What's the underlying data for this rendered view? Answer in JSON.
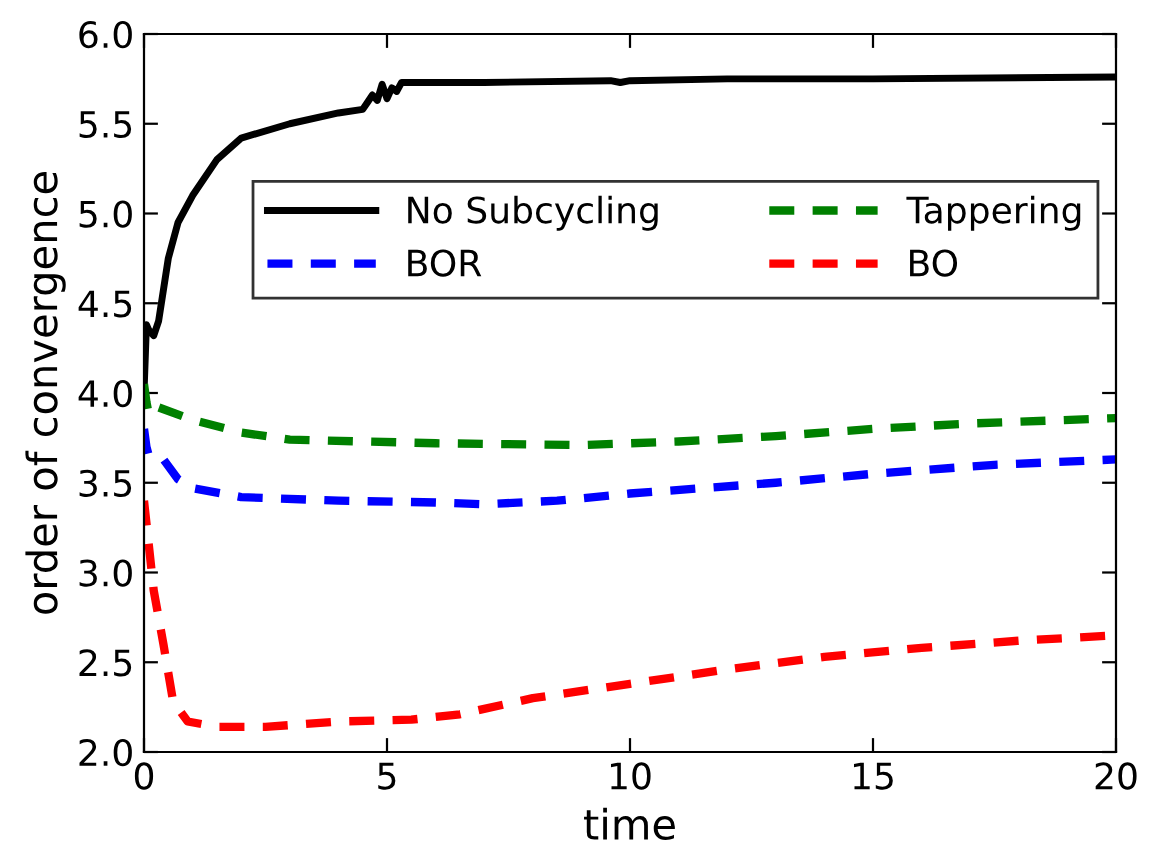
{
  "chart_data": {
    "type": "line",
    "xlabel": "time",
    "ylabel": "order of convergence",
    "xlim": [
      0,
      20
    ],
    "ylim": [
      2.0,
      6.0
    ],
    "xticks": [
      0,
      5,
      10,
      15,
      20
    ],
    "yticks": [
      {
        "value": 2.0,
        "label": "2.0"
      },
      {
        "value": 2.5,
        "label": "2.5"
      },
      {
        "value": 3.0,
        "label": "3.0"
      },
      {
        "value": 3.5,
        "label": "3.5"
      },
      {
        "value": 4.0,
        "label": "4.0"
      },
      {
        "value": 4.5,
        "label": "4.5"
      },
      {
        "value": 5.0,
        "label": "5.0"
      },
      {
        "value": 5.5,
        "label": "5.5"
      },
      {
        "value": 6.0,
        "label": "6.0"
      }
    ],
    "grid": false,
    "legend": "top right",
    "marker": "none",
    "series": [
      {
        "name": "No Subcycling",
        "color": "#000000",
        "line_style": "solid",
        "x": [
          0,
          0.05,
          0.1,
          0.2,
          0.3,
          0.5,
          0.7,
          1,
          1.5,
          2,
          3,
          4,
          4.5,
          4.6,
          4.7,
          4.8,
          4.9,
          5.0,
          5.1,
          5.2,
          5.3,
          7,
          9.6,
          9.8,
          10,
          12,
          15,
          20
        ],
        "values": [
          4.0,
          4.38,
          4.35,
          4.32,
          4.4,
          4.75,
          4.95,
          5.1,
          5.3,
          5.42,
          5.5,
          5.56,
          5.58,
          5.62,
          5.66,
          5.63,
          5.72,
          5.64,
          5.7,
          5.68,
          5.73,
          5.73,
          5.74,
          5.73,
          5.74,
          5.75,
          5.75,
          5.76
        ]
      },
      {
        "name": "BOR",
        "color": "#0000ff",
        "line_style": "dashed",
        "x": [
          0,
          0.05,
          0.1,
          0.4,
          0.7,
          1,
          2,
          4,
          6,
          7,
          8.5,
          10,
          13,
          15,
          17.5,
          20
        ],
        "values": [
          3.8,
          3.7,
          3.65,
          3.63,
          3.52,
          3.47,
          3.42,
          3.4,
          3.39,
          3.38,
          3.4,
          3.44,
          3.5,
          3.55,
          3.6,
          3.63
        ]
      },
      {
        "name": "Tappering",
        "color": "#008000",
        "line_style": "dashed",
        "x": [
          0,
          0.05,
          0.1,
          0.3,
          1,
          2,
          3,
          6,
          9,
          11,
          13,
          15,
          17,
          20
        ],
        "values": [
          4.05,
          3.95,
          3.88,
          3.92,
          3.85,
          3.78,
          3.74,
          3.72,
          3.71,
          3.73,
          3.76,
          3.8,
          3.83,
          3.86
        ]
      },
      {
        "name": "BO",
        "color": "#ff0000",
        "line_style": "dashed",
        "x": [
          0,
          0.2,
          0.4,
          0.6,
          0.9,
          1.5,
          2.5,
          4,
          5.5,
          6.5,
          8,
          10,
          12,
          14,
          16,
          18,
          20
        ],
        "values": [
          3.4,
          2.9,
          2.6,
          2.28,
          2.17,
          2.14,
          2.14,
          2.17,
          2.18,
          2.21,
          2.3,
          2.38,
          2.46,
          2.53,
          2.58,
          2.62,
          2.65
        ]
      }
    ]
  }
}
